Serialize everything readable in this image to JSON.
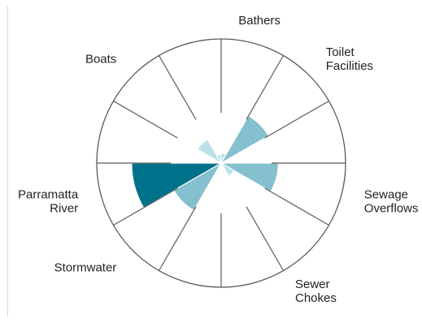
{
  "chart_data": {
    "type": "polar-area",
    "r_max": 100,
    "sector_count": 12,
    "categories": [
      "Bathers",
      "Toilet Facilities",
      "Sewage Overflows",
      "Sewer Chokes",
      "Stormwater",
      "Parramatta River",
      "Boats"
    ],
    "sectors": [
      {
        "index": 0,
        "value": 8,
        "color": "#b9e1ea"
      },
      {
        "index": 1,
        "value": 44,
        "color": "#84c0cd"
      },
      {
        "index": 2,
        "value": 0,
        "color": "#84c0cd"
      },
      {
        "index": 3,
        "value": 46,
        "color": "#84c0cd"
      },
      {
        "index": 4,
        "value": 12,
        "color": "#b9e1ea"
      },
      {
        "index": 5,
        "value": 0,
        "color": "#84c0cd"
      },
      {
        "index": 6,
        "value": 0,
        "color": "#84c0cd"
      },
      {
        "index": 7,
        "value": 44,
        "color": "#84c0cd"
      },
      {
        "index": 8,
        "value": 72,
        "color": "#00718a"
      },
      {
        "index": 9,
        "value": 0,
        "color": "#84c0cd"
      },
      {
        "index": 10,
        "value": 22,
        "color": "#b9e1ea"
      },
      {
        "index": 11,
        "value": 7,
        "color": "#b9e1ea"
      }
    ],
    "labels": [
      {
        "text": [
          "Bathers"
        ],
        "angle": 15
      },
      {
        "text": [
          "Toilet",
          "Facilities"
        ],
        "angle": 45
      },
      {
        "text": [
          "Sewage",
          "Overflows"
        ],
        "angle": 105
      },
      {
        "text": [
          "Sewer",
          "Chokes"
        ],
        "angle": 150
      },
      {
        "text": [
          "Stormwater"
        ],
        "angle": 225
      },
      {
        "text": [
          "Parramatta",
          "River"
        ],
        "angle": 255
      },
      {
        "text": [
          "Boats"
        ],
        "angle": 315
      }
    ],
    "grid": true,
    "colors": {
      "light": "#b9e1ea",
      "mid": "#84c0cd",
      "dark": "#00718a",
      "grid": "#5a5a5a"
    }
  }
}
